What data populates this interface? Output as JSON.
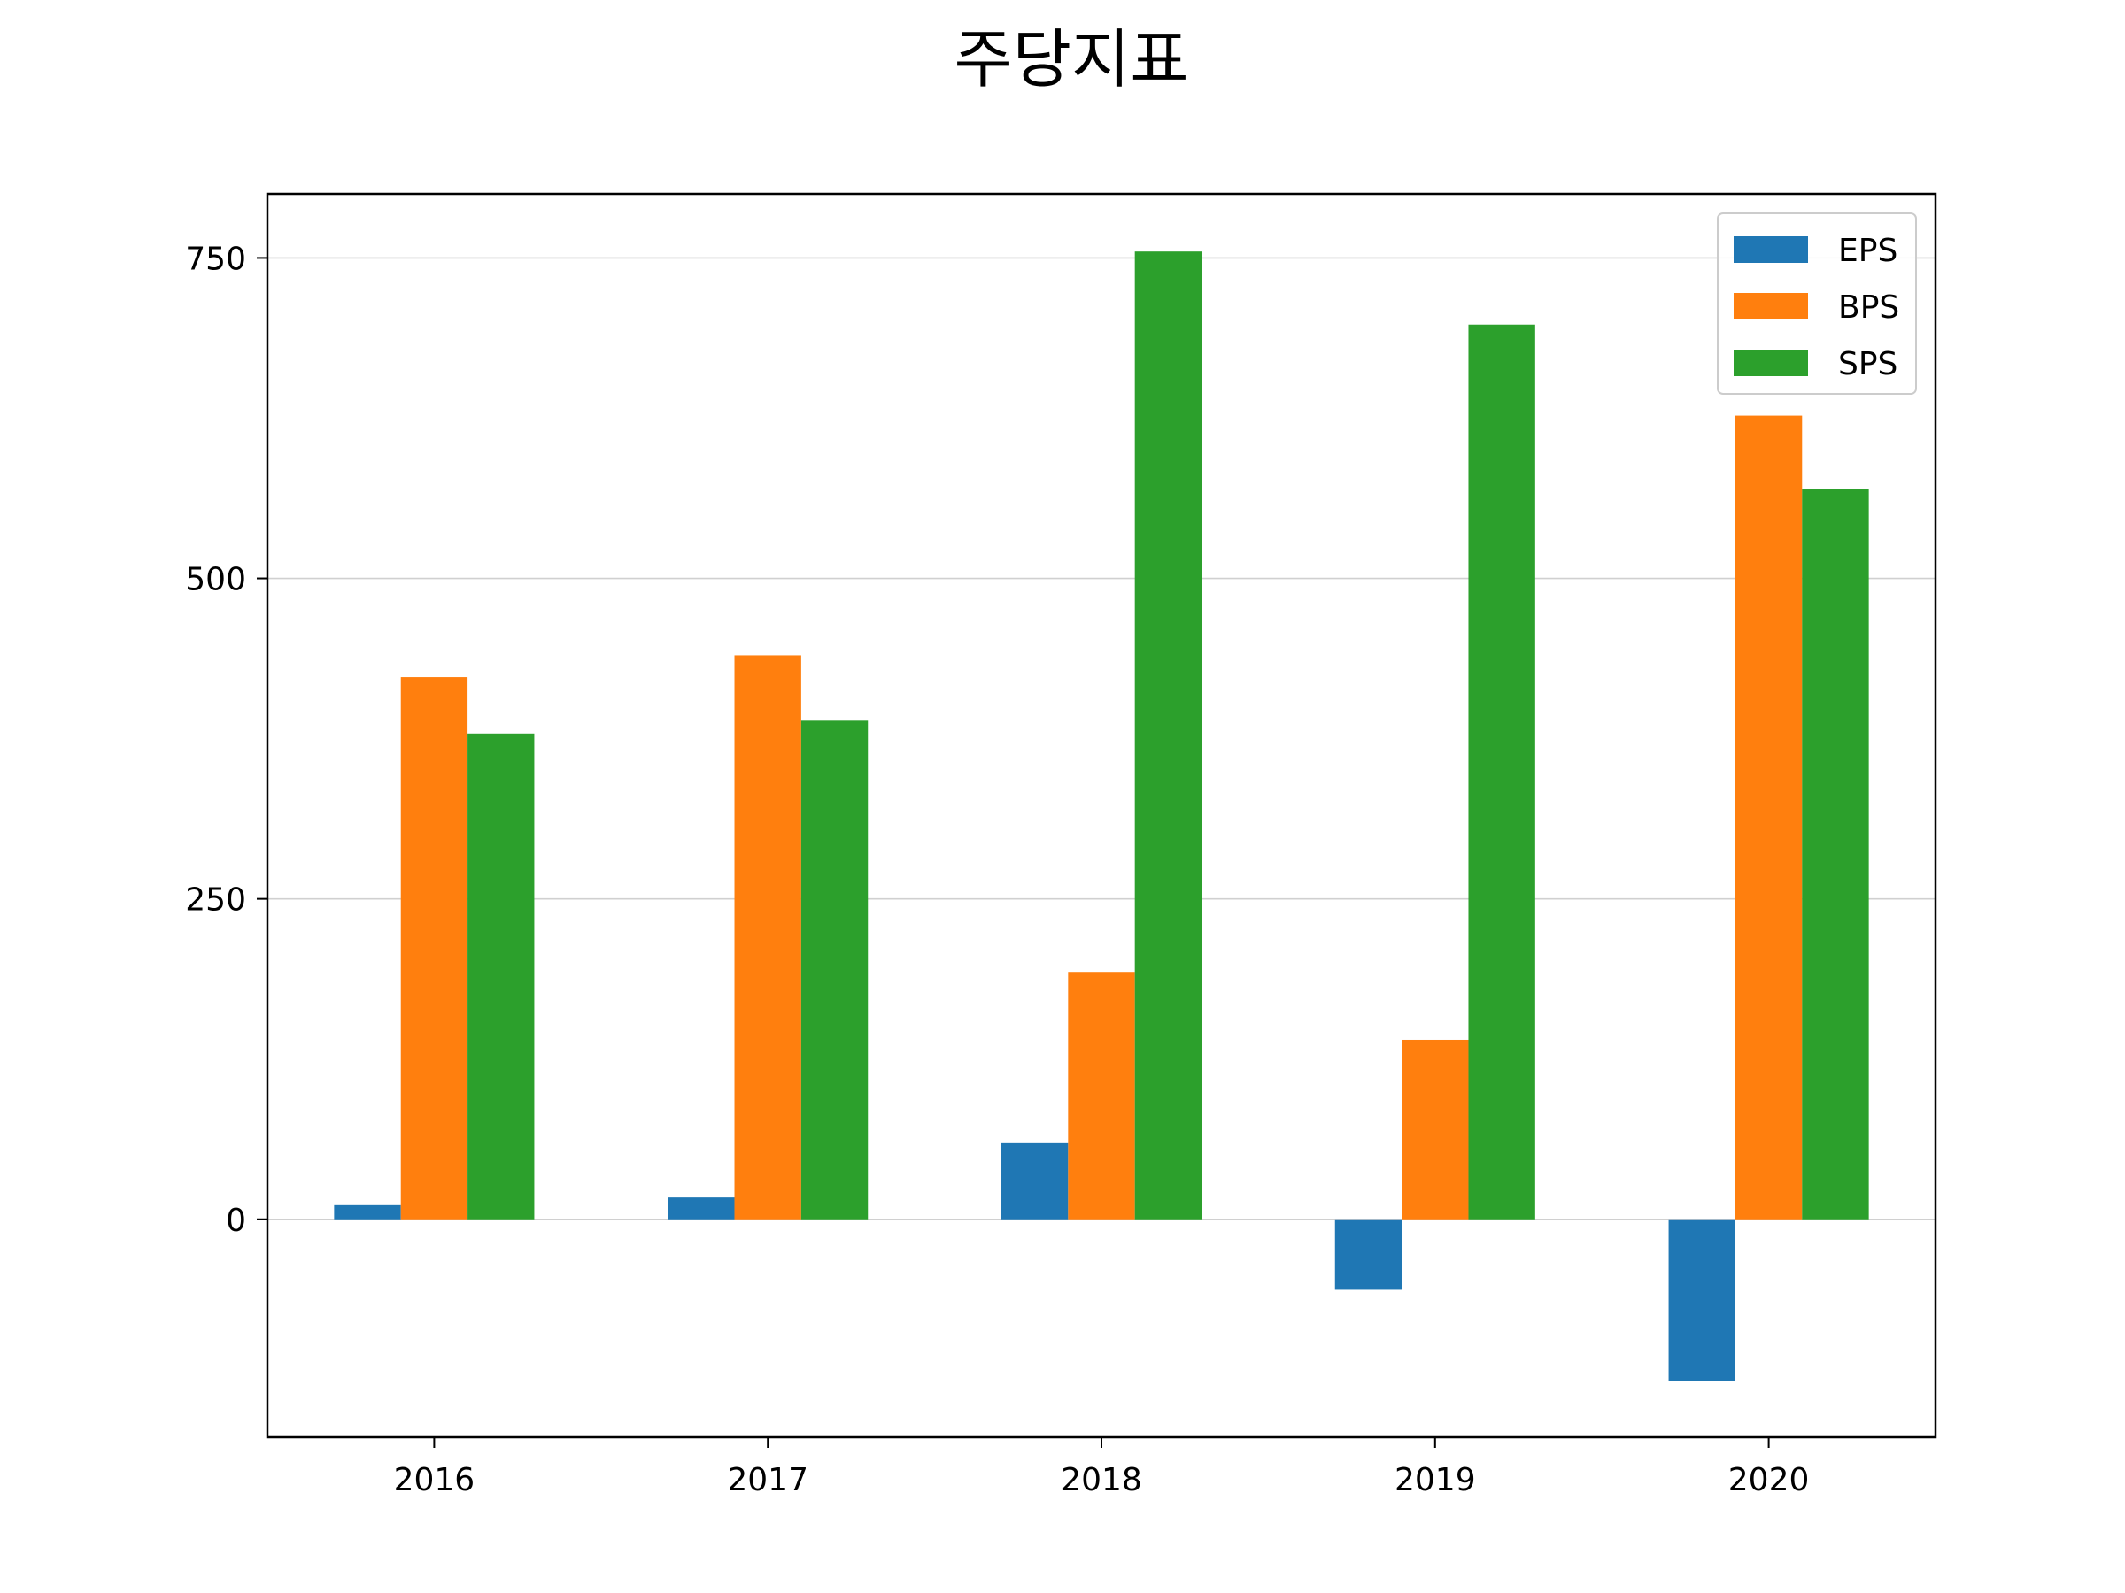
{
  "chart_data": {
    "type": "bar",
    "title": "주당지표",
    "xlabel": "",
    "ylabel": "",
    "categories": [
      "2016",
      "2017",
      "2018",
      "2019",
      "2020"
    ],
    "series": [
      {
        "name": "EPS",
        "color": "#1f77b4",
        "values": [
          11,
          17,
          60,
          -55,
          -126
        ]
      },
      {
        "name": "BPS",
        "color": "#ff7f0e",
        "values": [
          423,
          440,
          193,
          140,
          627
        ]
      },
      {
        "name": "SPS",
        "color": "#2ca02c",
        "values": [
          379,
          389,
          755,
          698,
          570
        ]
      }
    ],
    "ylim": [
      -170,
      800
    ],
    "yticks": [
      "0",
      "250",
      "500",
      "750"
    ],
    "ytick_values": [
      0,
      250,
      500,
      750
    ],
    "grid": "horizontal",
    "legend_position": "top-right"
  }
}
